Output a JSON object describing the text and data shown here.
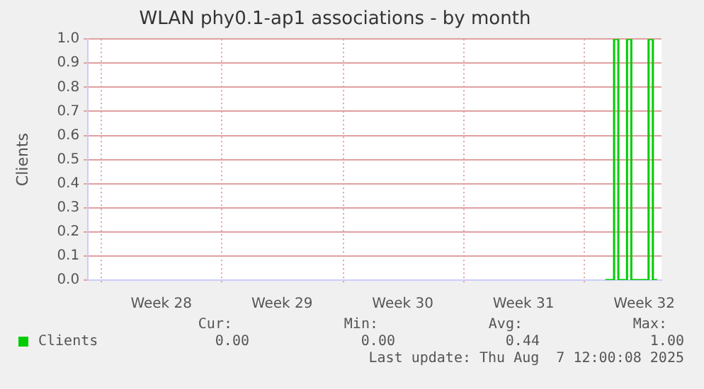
{
  "chart_data": {
    "type": "line",
    "title": "WLAN phy0.1-ap1 associations - by month",
    "ylabel": "Clients",
    "categories": [
      null,
      null,
      null,
      null,
      null,
      null,
      null,
      null,
      null,
      null,
      null,
      null,
      null,
      null,
      null,
      null,
      null,
      "Week 28",
      null,
      null,
      null,
      null,
      null,
      null,
      null,
      null,
      null,
      null,
      null,
      null,
      null,
      null,
      null,
      null,
      null,
      null,
      null,
      null,
      null,
      null,
      null,
      null,
      null,
      null,
      null,
      "Week 29",
      null,
      null,
      null,
      null,
      null,
      null,
      null,
      null,
      null,
      null,
      null,
      null,
      null,
      null,
      null,
      null,
      null,
      null,
      null,
      null,
      null,
      null,
      null,
      null,
      null,
      null,
      null,
      "Week 30",
      null,
      null,
      null,
      null,
      null,
      null,
      null,
      null,
      null,
      null,
      null,
      null,
      null,
      null,
      null,
      null,
      null,
      null,
      null,
      null,
      null,
      null,
      null,
      null,
      null,
      null,
      null,
      "Week 31",
      null,
      null,
      null,
      null,
      null,
      null,
      null,
      null,
      null,
      null,
      null,
      null,
      null,
      null,
      null,
      null,
      null,
      null,
      null,
      null,
      null,
      null,
      null,
      null,
      null,
      null,
      null,
      "Week 32",
      null,
      null,
      null,
      null
    ],
    "series": [
      {
        "name": "Clients",
        "color": "#00cc00",
        "type": "step",
        "values": [
          null,
          null,
          null,
          null,
          null,
          null,
          null,
          null,
          null,
          null,
          null,
          null,
          null,
          null,
          null,
          null,
          null,
          null,
          null,
          null,
          null,
          null,
          null,
          null,
          null,
          null,
          null,
          null,
          null,
          null,
          null,
          null,
          null,
          null,
          null,
          null,
          null,
          null,
          null,
          null,
          null,
          null,
          null,
          null,
          null,
          null,
          null,
          null,
          null,
          null,
          null,
          null,
          null,
          null,
          null,
          null,
          null,
          null,
          null,
          null,
          null,
          null,
          null,
          null,
          null,
          null,
          null,
          null,
          null,
          null,
          null,
          null,
          null,
          null,
          null,
          null,
          null,
          null,
          null,
          null,
          null,
          null,
          null,
          null,
          null,
          null,
          null,
          null,
          null,
          null,
          null,
          null,
          null,
          null,
          null,
          null,
          null,
          null,
          null,
          null,
          null,
          null,
          null,
          null,
          null,
          null,
          null,
          null,
          null,
          null,
          null,
          null,
          null,
          null,
          null,
          null,
          null,
          null,
          null,
          null,
          0,
          0,
          0,
          1,
          0,
          0,
          1,
          0,
          0,
          0,
          0,
          1,
          0,
          null
        ]
      }
    ],
    "ylim": [
      0,
      1
    ],
    "yticks": [
      {
        "value": 0,
        "label": "0.0"
      },
      {
        "value": 0.1,
        "label": "0.1"
      },
      {
        "value": 0.2,
        "label": "0.2"
      },
      {
        "value": 0.3,
        "label": "0.3"
      },
      {
        "value": 0.4,
        "label": "0.4"
      },
      {
        "value": 0.5,
        "label": "0.5"
      },
      {
        "value": 0.6,
        "label": "0.6"
      },
      {
        "value": 0.7,
        "label": "0.7"
      },
      {
        "value": 0.8,
        "label": "0.8"
      },
      {
        "value": 0.9,
        "label": "0.9"
      },
      {
        "value": 1,
        "label": "1.0"
      }
    ],
    "grid": true,
    "legend": "bottom left",
    "marker": "none",
    "line_style": "solid",
    "annotations": [
      "Cur:",
      "Min:",
      "Avg:",
      "Max:",
      "0.00",
      "0.00",
      "0.44",
      "1.00",
      "Last update: Thu Aug  7 12:00:08 2025"
    ]
  }
}
